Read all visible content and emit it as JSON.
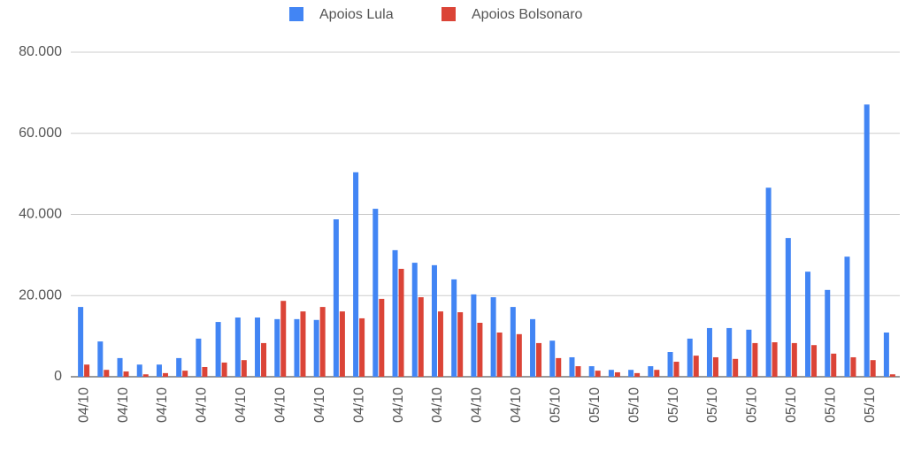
{
  "chart_data": {
    "type": "bar",
    "categories": [
      "04/10",
      null,
      "04/10",
      null,
      "04/10",
      null,
      "04/10",
      null,
      "04/10",
      null,
      "04/10",
      null,
      "04/10",
      null,
      "04/10",
      null,
      "04/10",
      null,
      "04/10",
      null,
      "04/10",
      null,
      "04/10",
      null,
      "05/10",
      null,
      "05/10",
      null,
      "05/10",
      null,
      "05/10",
      null,
      "05/10",
      null,
      "05/10",
      null,
      "05/10",
      null,
      "05/10",
      null,
      "05/10",
      null
    ],
    "series": [
      {
        "name": "Apoios Lula",
        "color": "#4285f4",
        "values": [
          17200,
          8700,
          4600,
          3000,
          3000,
          4600,
          9400,
          13500,
          14600,
          14600,
          14200,
          14200,
          14000,
          38800,
          50400,
          41400,
          31200,
          28100,
          27500,
          24000,
          20300,
          19600,
          17200,
          14200,
          8900,
          4800,
          2600,
          1700,
          1700,
          2600,
          6100,
          9400,
          12000,
          12000,
          11600,
          46600,
          34200,
          25900,
          21400,
          29600,
          67100,
          10900
        ]
      },
      {
        "name": "Apoios Bolsonaro",
        "color": "#db4437",
        "values": [
          3000,
          1700,
          1300,
          600,
          900,
          1500,
          2400,
          3500,
          4100,
          8300,
          18700,
          16100,
          17200,
          16100,
          14400,
          19200,
          26600,
          19600,
          16100,
          15900,
          13300,
          10900,
          10500,
          8300,
          4600,
          2600,
          1500,
          1100,
          900,
          1700,
          3700,
          5200,
          4800,
          4400,
          8300,
          8500,
          8300,
          7800,
          5700,
          4800,
          4100,
          600
        ]
      }
    ],
    "ylim": [
      0,
      80000
    ],
    "yticks": [
      0,
      {
        "value": 20000,
        "label": "20.000"
      },
      {
        "value": 40000,
        "label": "40.000"
      },
      {
        "value": 60000,
        "label": "60.000"
      },
      {
        "value": 80000,
        "label": "80.000"
      }
    ],
    "grid": true,
    "legend": "top"
  }
}
